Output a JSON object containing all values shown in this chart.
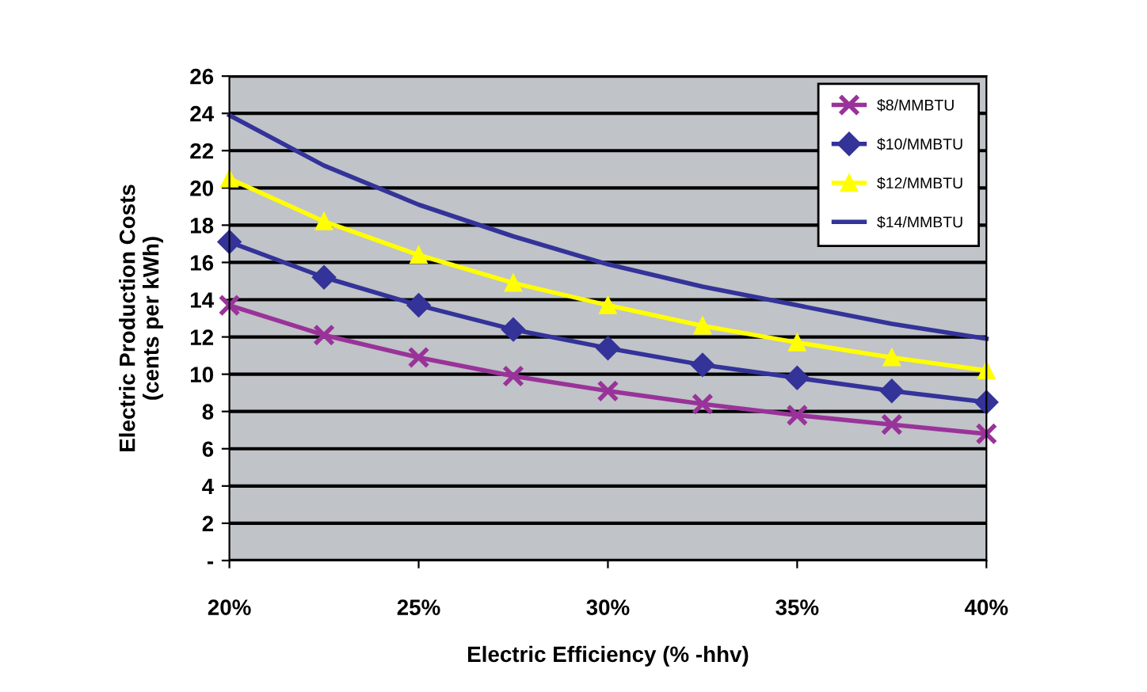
{
  "chart_data": {
    "type": "line",
    "xlabel": "Electric Efficiency (% -hhv)",
    "ylabel": "Electric Production Costs\n(cents per kWh)",
    "x": [
      20,
      22.5,
      25,
      27.5,
      30,
      32.5,
      35,
      37.5,
      40
    ],
    "series": [
      {
        "name": "$8/MMBTU",
        "color": "#993399",
        "marker": "cross",
        "values": [
          13.7,
          12.1,
          10.9,
          9.9,
          9.1,
          8.4,
          7.8,
          7.3,
          6.8
        ]
      },
      {
        "name": "$10/MMBTU",
        "color": "#333399",
        "marker": "diamond",
        "values": [
          17.1,
          15.2,
          13.7,
          12.4,
          11.4,
          10.5,
          9.8,
          9.1,
          8.5
        ]
      },
      {
        "name": "$12/MMBTU",
        "color": "#ffff00",
        "marker": "triangle",
        "values": [
          20.5,
          18.2,
          16.4,
          14.9,
          13.7,
          12.6,
          11.7,
          10.9,
          10.2
        ]
      },
      {
        "name": "$14/MMBTU",
        "color": "#333399",
        "marker": "none",
        "values": [
          23.9,
          21.2,
          19.1,
          17.4,
          15.9,
          14.7,
          13.7,
          12.7,
          11.9
        ]
      }
    ],
    "xlim": [
      20,
      40
    ],
    "xticks": [
      {
        "value": 20,
        "label": "20%"
      },
      {
        "value": 25,
        "label": "25%"
      },
      {
        "value": 30,
        "label": "30%"
      },
      {
        "value": 35,
        "label": "35%"
      },
      {
        "value": 40,
        "label": "40%"
      }
    ],
    "ylim": [
      0,
      26
    ],
    "yticks": [
      {
        "value": 0,
        "label": "-"
      },
      2,
      4,
      6,
      8,
      10,
      12,
      14,
      16,
      18,
      20,
      22,
      24,
      26
    ],
    "grid": "y",
    "legend": "top right",
    "line_style": "solid"
  }
}
